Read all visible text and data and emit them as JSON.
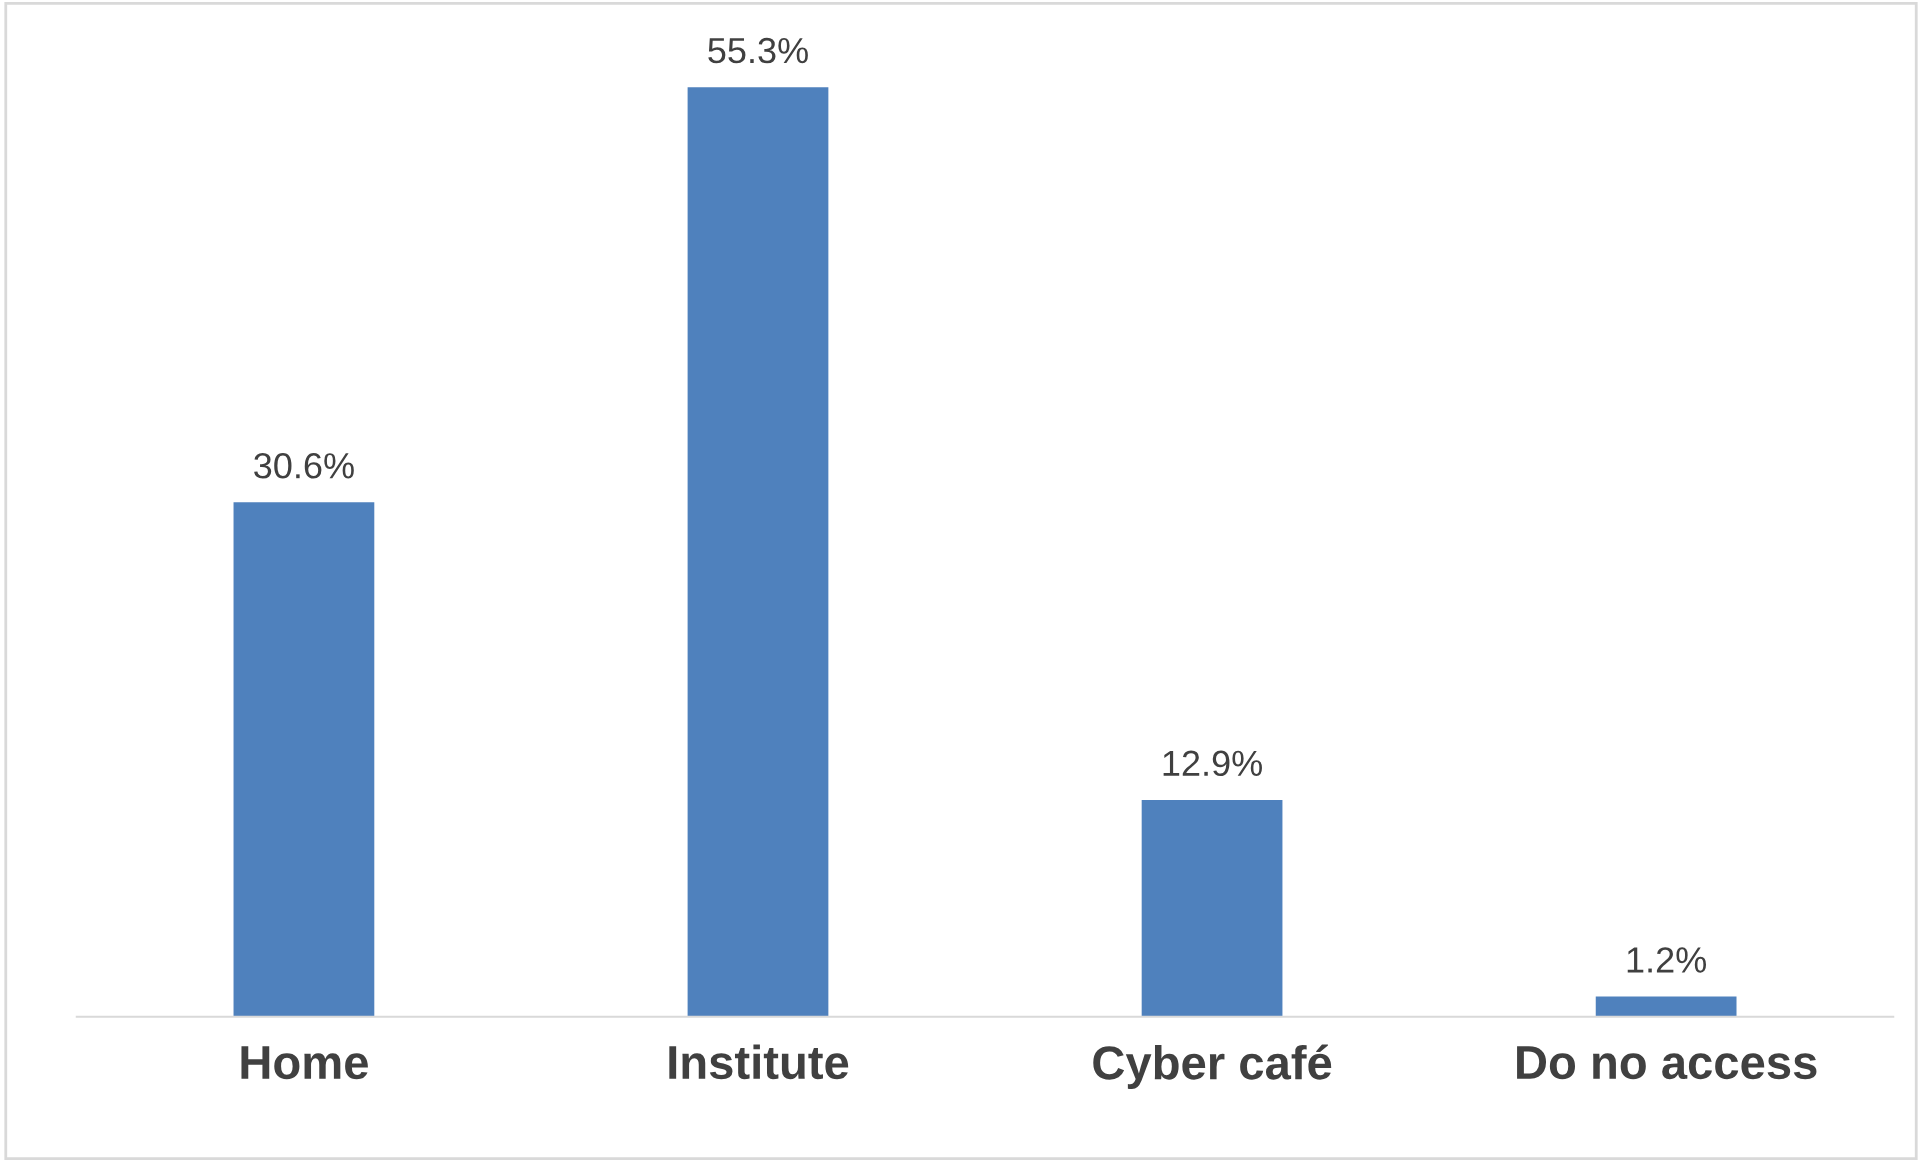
{
  "chart_data": {
    "type": "bar",
    "categories": [
      "Home",
      "Institute",
      "Cyber café",
      "Do no access"
    ],
    "values": [
      30.6,
      55.3,
      12.9,
      1.2
    ],
    "value_labels": [
      "30.6%",
      "55.3%",
      "12.9%",
      "1.2%"
    ],
    "color": "#4f81bd",
    "grid": false,
    "legend": false
  }
}
